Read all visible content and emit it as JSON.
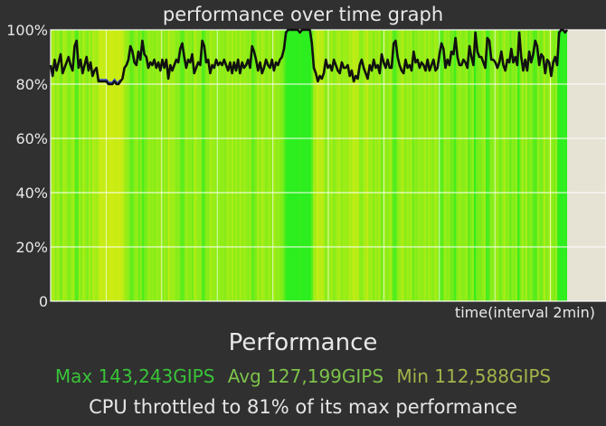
{
  "title": "performance over time graph",
  "x_axis_label": "time(interval 2min)",
  "section_title": "Performance",
  "stats": {
    "max": "Max 143,243GIPS",
    "avg": "Avg 127,199GIPS",
    "min": "Min 112,588GIPS"
  },
  "throttle_text": "CPU throttled to 81% of its max performance",
  "colors": {
    "background": "#303030",
    "plot_remaining": "#e6e2d4",
    "grid": "#ffffff",
    "line": "#111111",
    "low_segment": "#3a4bd8",
    "max_color": "#39c339",
    "avg_color": "#7cc24a",
    "min_color": "#a4b34a"
  },
  "chart_data": {
    "type": "line",
    "title": "performance over time graph",
    "xlabel": "time(interval 2min)",
    "ylabel": "",
    "ylim": [
      0,
      100
    ],
    "y_ticks": [
      "0",
      "20%",
      "40%",
      "60%",
      "80%",
      "100%"
    ],
    "grid": true,
    "recorded_fraction_of_window": 0.93,
    "series": [
      {
        "values": [
          87,
          83,
          89,
          85,
          88,
          91,
          84,
          86,
          88,
          90,
          87,
          85,
          94,
          96,
          86,
          89,
          84,
          87,
          90,
          85,
          88,
          83,
          85,
          86,
          81,
          81,
          81,
          81,
          81,
          80,
          80,
          80,
          81,
          80,
          80,
          81,
          82,
          86,
          87,
          89,
          94,
          92,
          88,
          87,
          92,
          89,
          96,
          91,
          90,
          86,
          88,
          87,
          89,
          86,
          88,
          85,
          89,
          86,
          89,
          82,
          87,
          85,
          87,
          89,
          88,
          93,
          95,
          90,
          86,
          89,
          88,
          91,
          84,
          86,
          88,
          87,
          96,
          94,
          88,
          89,
          84,
          87,
          86,
          89,
          87,
          88,
          87,
          89,
          87,
          85,
          88,
          84,
          88,
          85,
          89,
          84,
          88,
          86,
          87,
          89,
          86,
          94,
          92,
          89,
          85,
          88,
          84,
          86,
          89,
          87,
          86,
          89,
          85,
          88,
          87,
          89,
          90,
          93,
          99,
          100,
          100,
          100,
          100,
          100,
          100,
          99,
          100,
          100,
          100,
          100,
          100,
          95,
          86,
          84,
          81,
          83,
          82,
          84,
          89,
          86,
          87,
          85,
          89,
          87,
          85,
          84,
          88,
          86,
          86,
          87,
          83,
          85,
          81,
          83,
          82,
          87,
          89,
          86,
          84,
          82,
          87,
          85,
          89,
          86,
          87,
          84,
          91,
          88,
          86,
          89,
          86,
          86,
          95,
          96,
          90,
          87,
          85,
          84,
          89,
          86,
          87,
          85,
          92,
          88,
          89,
          86,
          88,
          87,
          85,
          89,
          85,
          87,
          89,
          85,
          86,
          91,
          95,
          93,
          86,
          89,
          87,
          92,
          91,
          97,
          90,
          87,
          87,
          89,
          88,
          86,
          94,
          90,
          87,
          99,
          92,
          90,
          90,
          88,
          86,
          97,
          96,
          89,
          89,
          88,
          86,
          88,
          92,
          87,
          85,
          89,
          88,
          93,
          88,
          90,
          87,
          99,
          90,
          85,
          89,
          85,
          92,
          88,
          91,
          96,
          94,
          87,
          91,
          90,
          84,
          89,
          88,
          83,
          88,
          90,
          87,
          99,
          100,
          100,
          99,
          100
        ]
      }
    ]
  }
}
